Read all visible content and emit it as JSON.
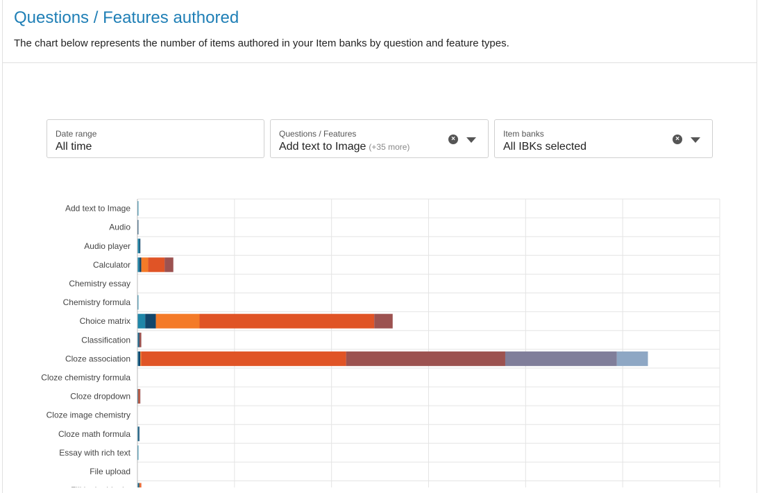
{
  "header": {
    "title": "Questions / Features authored",
    "subtitle": "The chart below represents the number of items authored in your Item banks by question and feature types."
  },
  "filters": {
    "date_range": {
      "label": "Date range",
      "value": "All time"
    },
    "questions_features": {
      "label": "Questions / Features",
      "value": "Add text to Image",
      "more": "(+35 more)",
      "clear_icon": "clear-x-icon",
      "caret_icon": "chevron-down-icon"
    },
    "item_banks": {
      "label": "Item banks",
      "value": "All IBKs selected",
      "clear_icon": "clear-x-icon",
      "caret_icon": "chevron-down-icon"
    }
  },
  "colors": {
    "s1": "#1f86a8",
    "s2": "#13466b",
    "s3": "#f47a28",
    "s4": "#e05426",
    "s5": "#9c5250",
    "s6": "#807e9a",
    "s7": "#8ea7c4"
  },
  "chart_data": {
    "type": "bar",
    "orientation": "horizontal",
    "stacked": true,
    "grid": true,
    "xlim": [
      0,
      600
    ],
    "categories": [
      "Add text to Image",
      "Audio",
      "Audio player",
      "Calculator",
      "Chemistry essay",
      "Chemistry formula",
      "Choice matrix",
      "Classification",
      "Cloze association",
      "Cloze chemistry formula",
      "Cloze dropdown",
      "Cloze image chemistry",
      "Cloze math formula",
      "Essay with rich text",
      "File upload",
      "Fill in the blanks"
    ],
    "series": [
      {
        "color_key": "s1",
        "values": [
          1,
          0,
          2,
          2,
          0,
          1,
          8,
          1,
          1,
          0,
          0,
          0,
          1,
          1,
          0,
          1
        ]
      },
      {
        "color_key": "s2",
        "values": [
          0,
          1,
          1,
          2,
          0,
          0,
          11,
          1,
          2,
          0,
          1,
          0,
          1,
          0,
          0,
          1
        ]
      },
      {
        "color_key": "s3",
        "values": [
          0,
          0,
          0,
          7,
          0,
          0,
          45,
          0,
          1,
          0,
          0,
          0,
          0,
          0,
          0,
          1
        ]
      },
      {
        "color_key": "s4",
        "values": [
          0,
          0,
          0,
          17,
          0,
          0,
          180,
          0,
          211,
          0,
          1,
          0,
          0,
          0,
          0,
          1
        ]
      },
      {
        "color_key": "s5",
        "values": [
          0,
          0,
          0,
          9,
          0,
          0,
          19,
          2,
          164,
          0,
          1,
          0,
          0,
          0,
          0,
          0
        ]
      },
      {
        "color_key": "s6",
        "values": [
          0,
          0,
          0,
          0,
          0,
          0,
          0,
          0,
          115,
          0,
          0,
          0,
          0,
          0,
          0,
          0
        ]
      },
      {
        "color_key": "s7",
        "values": [
          0,
          0,
          0,
          0,
          0,
          0,
          0,
          0,
          32,
          0,
          0,
          0,
          0,
          0,
          0,
          0
        ]
      }
    ]
  }
}
